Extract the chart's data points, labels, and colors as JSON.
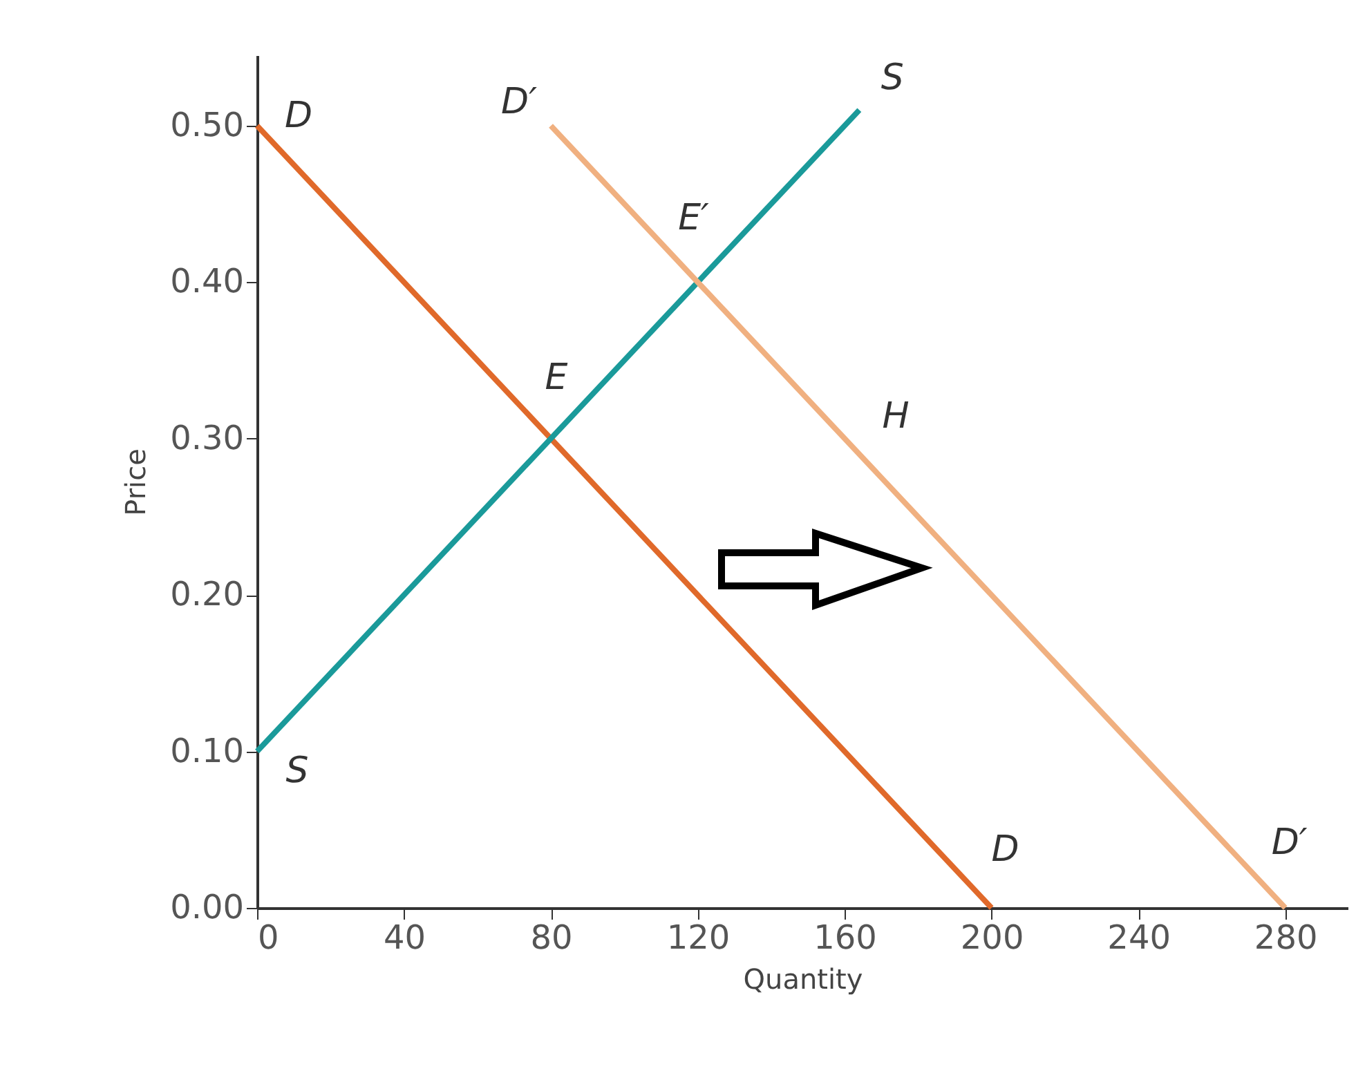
{
  "chart_data": {
    "type": "line",
    "xlabel": "Quantity",
    "ylabel": "Price",
    "series": [
      {
        "color": "#e0692a",
        "x": [
          0,
          200
        ],
        "values": [
          0.5,
          0
        ]
      },
      {
        "color": "#1a9a9a",
        "x": [
          0,
          164
        ],
        "values": [
          0.1,
          0.51
        ]
      },
      {
        "color": "#f0b080",
        "x": [
          80,
          280
        ],
        "values": [
          0.5,
          0
        ]
      }
    ],
    "xlim": [
      0,
      297
    ],
    "xticks": [
      0,
      40,
      80,
      120,
      160,
      200,
      240,
      280
    ],
    "ylim": [
      0,
      0.545
    ],
    "yticks": [
      {
        "value": 0,
        "label": "0.00"
      },
      {
        "value": 0.1,
        "label": "0.10"
      },
      {
        "value": 0.2,
        "label": "0.20"
      },
      {
        "value": 0.3,
        "label": "0.30"
      },
      {
        "value": 0.4,
        "label": "0.40"
      },
      {
        "value": 0.5,
        "label": "0.50"
      }
    ],
    "annotations": [
      {
        "text": "D",
        "x": 0,
        "y": 0.5
      },
      {
        "text": "D′",
        "x": 80,
        "y": 0.5
      },
      {
        "text": "S",
        "x": 164,
        "y": 0.51
      },
      {
        "text": "E′",
        "x": 120,
        "y": 0.4
      },
      {
        "text": "E",
        "x": 80,
        "y": 0.3
      },
      {
        "text": "H",
        "x": 160,
        "y": 0.3
      },
      {
        "text": "S",
        "x": 0,
        "y": 0.1
      },
      {
        "text": "D",
        "x": 200,
        "y": 0
      },
      {
        "text": "D′",
        "x": 280,
        "y": 0
      }
    ],
    "grid": false,
    "marker": "none",
    "line_style": "solid"
  }
}
